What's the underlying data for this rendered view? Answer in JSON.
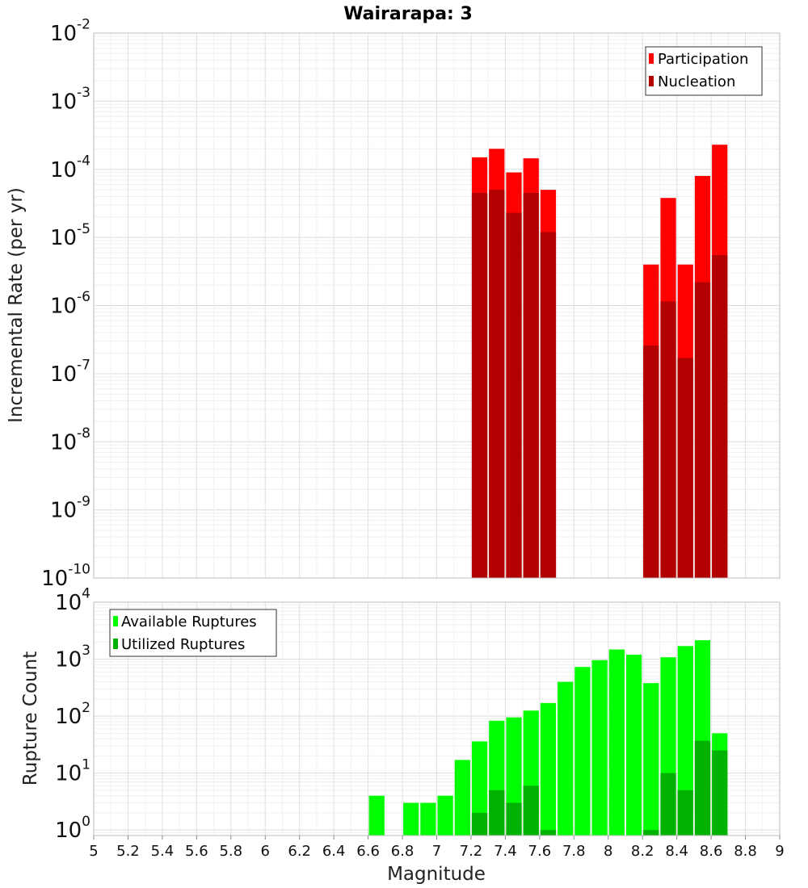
{
  "chart_data": [
    {
      "type": "bar",
      "title": "Wairarapa: 3",
      "xlabel": "",
      "ylabel": "Incremental Rate (per yr)",
      "xlim": [
        5,
        9
      ],
      "ylim": [
        1e-10,
        0.01
      ],
      "yscale": "log",
      "grid": true,
      "legend_position": "top-right",
      "colors": {
        "Participation": "#ff0000",
        "Nucleation": "#b20000"
      },
      "series": [
        {
          "name": "Participation",
          "x": [
            7.25,
            7.35,
            7.45,
            7.55,
            7.65,
            8.25,
            8.35,
            8.45,
            8.55,
            8.65
          ],
          "values": [
            0.00015,
            0.0002,
            9e-05,
            0.000145,
            5e-05,
            4e-06,
            3.8e-05,
            4e-06,
            8e-05,
            0.00023
          ]
        },
        {
          "name": "Nucleation",
          "x": [
            7.25,
            7.35,
            7.45,
            7.55,
            7.65,
            8.25,
            8.35,
            8.45,
            8.55,
            8.65
          ],
          "values": [
            4.5e-05,
            5e-05,
            2.3e-05,
            4.5e-05,
            1.2e-05,
            2.6e-07,
            1.15e-06,
            1.7e-07,
            2.2e-06,
            5.5e-06
          ]
        }
      ],
      "y_ticks": [
        {
          "base": "10",
          "exp": "-10"
        },
        {
          "base": "10",
          "exp": "-9"
        },
        {
          "base": "10",
          "exp": "-8"
        },
        {
          "base": "10",
          "exp": "-7"
        },
        {
          "base": "10",
          "exp": "-6"
        },
        {
          "base": "10",
          "exp": "-5"
        },
        {
          "base": "10",
          "exp": "-4"
        },
        {
          "base": "10",
          "exp": "-3"
        },
        {
          "base": "10",
          "exp": "-2"
        }
      ]
    },
    {
      "type": "bar",
      "title": "",
      "xlabel": "Magnitude",
      "ylabel": "Rupture Count",
      "xlim": [
        5,
        9
      ],
      "ylim": [
        0.8,
        10000
      ],
      "yscale": "log",
      "grid": true,
      "legend_position": "top-left",
      "colors": {
        "Available Ruptures": "#00ff00",
        "Utilized Ruptures": "#00b200"
      },
      "series": [
        {
          "name": "Available Ruptures",
          "x": [
            6.65,
            6.85,
            6.95,
            7.05,
            7.15,
            7.25,
            7.35,
            7.45,
            7.55,
            7.65,
            7.75,
            7.85,
            7.95,
            8.05,
            8.15,
            8.25,
            8.35,
            8.45,
            8.55,
            8.65
          ],
          "values": [
            4,
            3,
            3,
            4,
            17,
            36,
            83,
            95,
            125,
            170,
            400,
            730,
            960,
            1480,
            1200,
            380,
            1080,
            1700,
            2150,
            50
          ]
        },
        {
          "name": "Utilized Ruptures",
          "x": [
            7.25,
            7.35,
            7.45,
            7.55,
            7.65,
            8.25,
            8.35,
            8.45,
            8.55,
            8.65
          ],
          "values": [
            2,
            5,
            3,
            6,
            1,
            1,
            10,
            5,
            37,
            25
          ]
        }
      ],
      "x_ticks": [
        "5",
        "5.2",
        "5.4",
        "5.6",
        "5.8",
        "6",
        "6.2",
        "6.4",
        "6.6",
        "6.8",
        "7",
        "7.2",
        "7.4",
        "7.6",
        "7.8",
        "8",
        "8.2",
        "8.4",
        "8.6",
        "8.8",
        "9"
      ],
      "y_ticks": [
        {
          "base": "10",
          "exp": "0"
        },
        {
          "base": "10",
          "exp": "1"
        },
        {
          "base": "10",
          "exp": "2"
        },
        {
          "base": "10",
          "exp": "3"
        },
        {
          "base": "10",
          "exp": "4"
        }
      ]
    }
  ]
}
